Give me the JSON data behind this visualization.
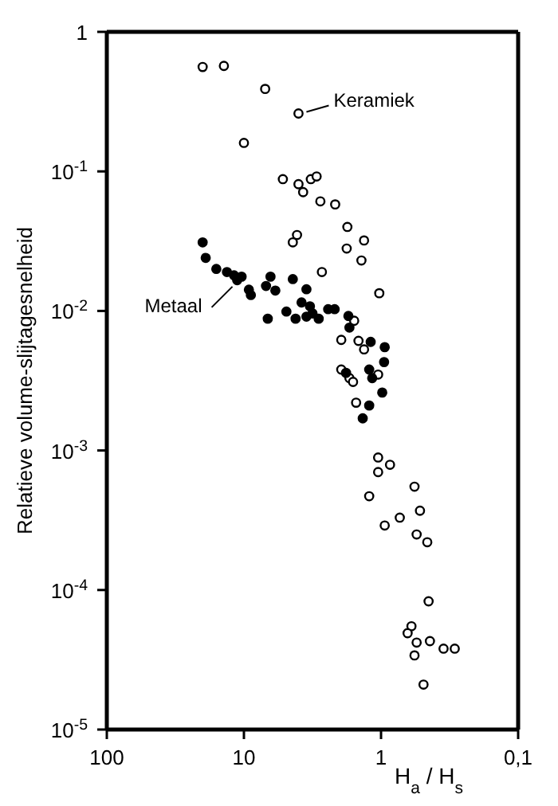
{
  "chart_data": {
    "type": "scatter",
    "ylabel": "Relatieve volume-slijtagesnelheid",
    "xlabel": "H$_{a}$ / H$_{s}$",
    "log": "xy",
    "marker": "circle",
    "grid": false,
    "legend": false,
    "xlim": [
      100,
      0.1
    ],
    "xticks": [
      100,
      10,
      1,
      {
        "value": 0.1,
        "label": "0,1"
      }
    ],
    "ylim": [
      1e-05,
      1
    ],
    "yticks": [
      1,
      {
        "value": 0.1,
        "label": "10$^{-1}$"
      },
      {
        "value": 0.01,
        "label": "10$^{-2}$"
      },
      {
        "value": 0.001,
        "label": "10$^{-3}$"
      },
      {
        "value": 0.0001,
        "label": "10$^{-4}$"
      },
      {
        "value": 1e-05,
        "label": "10$^{-5}$"
      }
    ],
    "series": [
      {
        "color": "#000000",
        "x": [
          20,
          14,
          7,
          4,
          10,
          5.2,
          4,
          3.7,
          3.25,
          2.95,
          2.77,
          2.16,
          1.76,
          1.33,
          4.1,
          4.4,
          1.78,
          1.39,
          2.7,
          1.03,
          1.57,
          1.95,
          1.46,
          1.33,
          1.95,
          1.7,
          1.6,
          1.05,
          1.52,
          1.05,
          0.86,
          1.05,
          0.57,
          1.22,
          0.73,
          0.94,
          0.52,
          0.55,
          0.46,
          0.45,
          0.6,
          0.64,
          0.55,
          0.44,
          0.35,
          0.29,
          0.57,
          0.49
        ],
        "values": [
          0.56,
          0.57,
          0.39,
          0.26,
          0.16,
          0.088,
          0.081,
          0.071,
          0.088,
          0.092,
          0.061,
          0.058,
          0.04,
          0.032,
          0.035,
          0.031,
          0.028,
          0.023,
          0.019,
          0.0134,
          0.0085,
          0.0062,
          0.0061,
          0.0053,
          0.0038,
          0.0033,
          0.0031,
          0.0035,
          0.0022,
          0.00089,
          0.00079,
          0.0007,
          0.00055,
          0.00047,
          0.00033,
          0.00029,
          0.00037,
          0.00025,
          0.00022,
          8.3e-05,
          5.5e-05,
          4.9e-05,
          4.2e-05,
          4.3e-05,
          3.8e-05,
          3.8e-05,
          3.4e-05,
          2.1e-05
        ]
      },
      {
        "color": "#000000",
        "x": [
          20,
          19,
          15.9,
          13.3,
          11.8,
          10.4,
          11.2,
          9.2,
          8.9,
          6.4,
          6.9,
          5.9,
          4.4,
          6.7,
          4.9,
          4.2,
          3.8,
          3.5,
          3.3,
          3.16,
          3.5,
          2.85,
          2.43,
          2.18,
          1.73,
          1.7,
          1.19,
          0.94,
          0.95,
          1.22,
          1.16,
          1.8,
          0.98,
          1.22,
          1.36
        ],
        "values": [
          0.031,
          0.024,
          0.02,
          0.019,
          0.018,
          0.0176,
          0.0166,
          0.0142,
          0.013,
          0.0176,
          0.0151,
          0.014,
          0.0169,
          0.0088,
          0.0099,
          0.0088,
          0.0115,
          0.0143,
          0.0108,
          0.0096,
          0.0091,
          0.0088,
          0.0103,
          0.0103,
          0.0092,
          0.0076,
          0.006,
          0.0055,
          0.0043,
          0.0038,
          0.0033,
          0.0036,
          0.0026,
          0.0021,
          0.0017
        ]
      }
    ],
    "annotations": [
      {
        "text": "Keramiek",
        "x": 4,
        "y": 0.26
      },
      {
        "text": "Metaal",
        "x": 11.2,
        "y": 0.0166
      }
    ]
  }
}
